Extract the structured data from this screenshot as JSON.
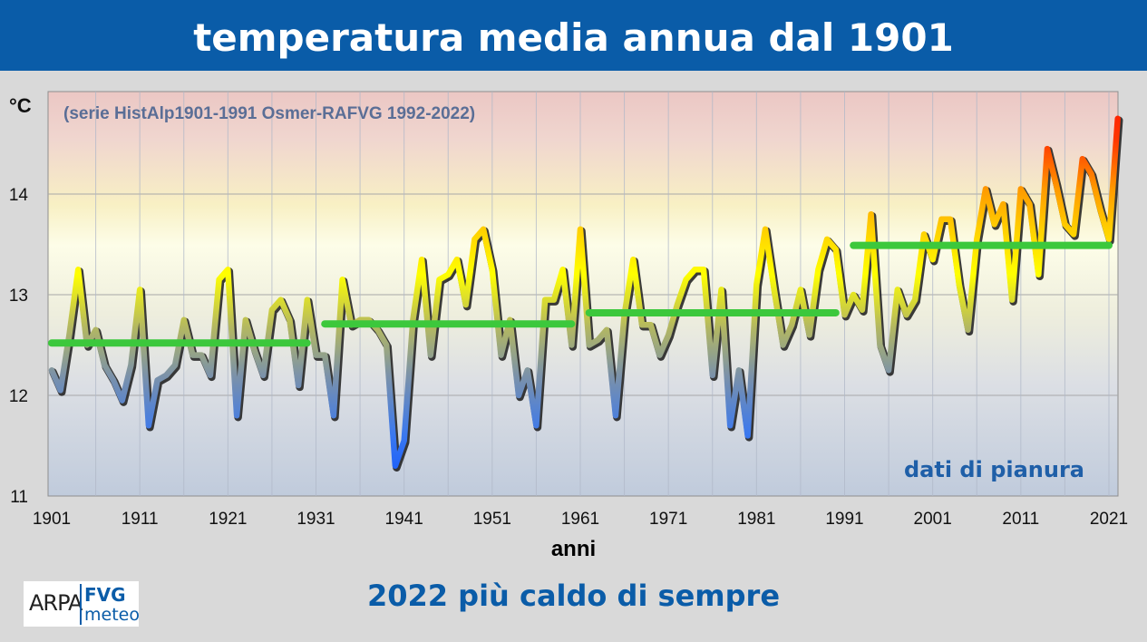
{
  "header": {
    "title": "temperatura media annua dal 1901"
  },
  "footer": {
    "headline": "2022 più caldo di sempre"
  },
  "logo": {
    "arpa": "ARPA",
    "fvg": "FVG",
    "meteo": "meteo"
  },
  "colors": {
    "header_bg": "#0a5ca8",
    "footer_text": "#0a5ca8",
    "mean_line": "#3cc83c",
    "note_text": "#1f5fa8"
  },
  "chart_data": {
    "type": "line",
    "subtitle": "(serie HistAlp1901-1991 Osmer-RAFVG 1992-2022)",
    "ylabel": "°C",
    "xlabel": "anni",
    "annotation": "dati di pianura",
    "ylim": [
      11,
      14.9
    ],
    "xlim": [
      1901,
      2022
    ],
    "yticks": [
      11,
      12,
      13,
      14
    ],
    "xticks": [
      1901,
      1911,
      1921,
      1931,
      1941,
      1951,
      1961,
      1971,
      1981,
      1991,
      2001,
      2011,
      2021
    ],
    "grid": true,
    "x": [
      1901,
      1902,
      1903,
      1904,
      1905,
      1906,
      1907,
      1908,
      1909,
      1910,
      1911,
      1912,
      1913,
      1914,
      1915,
      1916,
      1917,
      1918,
      1919,
      1920,
      1921,
      1922,
      1923,
      1924,
      1925,
      1926,
      1927,
      1928,
      1929,
      1930,
      1931,
      1932,
      1933,
      1934,
      1935,
      1936,
      1937,
      1938,
      1939,
      1940,
      1941,
      1942,
      1943,
      1944,
      1945,
      1946,
      1947,
      1948,
      1949,
      1950,
      1951,
      1952,
      1953,
      1954,
      1955,
      1956,
      1957,
      1958,
      1959,
      1960,
      1961,
      1962,
      1963,
      1964,
      1965,
      1966,
      1967,
      1968,
      1969,
      1970,
      1971,
      1972,
      1973,
      1974,
      1975,
      1976,
      1977,
      1978,
      1979,
      1980,
      1981,
      1982,
      1983,
      1984,
      1985,
      1986,
      1987,
      1988,
      1989,
      1990,
      1991,
      1992,
      1993,
      1994,
      1995,
      1996,
      1997,
      1998,
      1999,
      2000,
      2001,
      2002,
      2003,
      2004,
      2005,
      2006,
      2007,
      2008,
      2009,
      2010,
      2011,
      2012,
      2013,
      2014,
      2015,
      2016,
      2017,
      2018,
      2019,
      2020,
      2021,
      2022
    ],
    "series": [
      {
        "values": [
          12.25,
          12.05,
          12.6,
          13.25,
          12.5,
          12.65,
          12.3,
          12.15,
          11.95,
          12.3,
          13.05,
          11.7,
          12.15,
          12.2,
          12.3,
          12.75,
          12.4,
          12.4,
          12.2,
          13.15,
          13.25,
          11.8,
          12.75,
          12.45,
          12.2,
          12.85,
          12.95,
          12.75,
          12.1,
          12.95,
          12.4,
          12.4,
          11.8,
          13.15,
          12.7,
          12.75,
          12.75,
          12.65,
          12.5,
          11.3,
          11.55,
          12.75,
          13.35,
          12.4,
          13.15,
          13.2,
          13.35,
          12.9,
          13.55,
          13.65,
          13.25,
          12.4,
          12.75,
          12.0,
          12.25,
          11.7,
          12.95,
          12.95,
          13.25,
          12.5,
          13.65,
          12.5,
          12.55,
          12.65,
          11.8,
          12.8,
          13.35,
          12.7,
          12.7,
          12.4,
          12.6,
          12.9,
          13.15,
          13.25,
          13.25,
          12.2,
          13.05,
          11.7,
          12.25,
          11.6,
          13.1,
          13.65,
          13.05,
          12.5,
          12.7,
          13.05,
          12.6,
          13.25,
          13.55,
          13.45,
          12.8,
          13.0,
          12.85,
          13.8,
          12.5,
          12.25,
          13.05,
          12.8,
          12.95,
          13.6,
          13.35,
          13.75,
          13.75,
          13.1,
          12.65,
          13.55,
          14.05,
          13.7,
          13.9,
          12.95,
          14.05,
          13.9,
          13.2,
          14.45,
          14.1,
          13.7,
          13.6,
          14.35,
          14.2,
          13.85,
          13.55,
          14.75
        ]
      }
    ],
    "period_means": [
      {
        "start": 1901,
        "end": 1930,
        "value": 12.52
      },
      {
        "start": 1932,
        "end": 1960,
        "value": 12.71
      },
      {
        "start": 1962,
        "end": 1990,
        "value": 12.82
      },
      {
        "start": 1992,
        "end": 2021,
        "value": 13.49
      }
    ]
  }
}
